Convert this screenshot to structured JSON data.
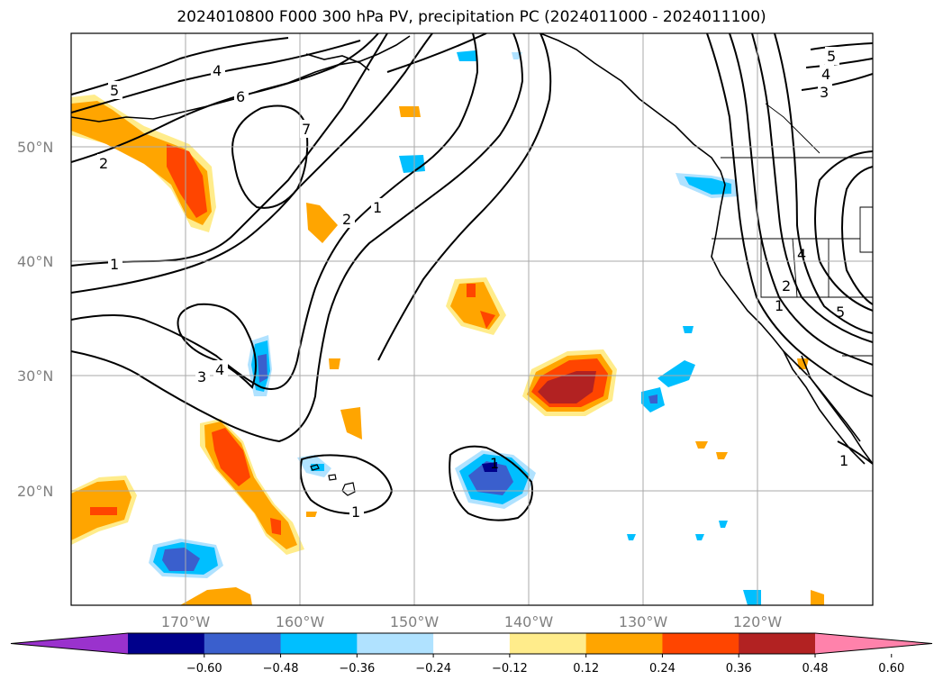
{
  "title": "2024010800 F000 300 hPa PV, precipitation PC (2024011000 - 2024011100)",
  "map": {
    "lat_labels": [
      "50°N",
      "40°N",
      "30°N",
      "20°N"
    ],
    "lon_labels": [
      "170°W",
      "160°W",
      "150°W",
      "140°W",
      "130°W",
      "120°W"
    ],
    "gridline_color": "#aaaaaa",
    "pv_contour_labels": [
      "1",
      "2",
      "3",
      "4",
      "5",
      "6",
      "7"
    ]
  },
  "colorbar": {
    "tick_labels": [
      "−0.60",
      "−0.48",
      "−0.36",
      "−0.24",
      "−0.12",
      "0.12",
      "0.24",
      "0.36",
      "0.48",
      "0.60"
    ],
    "colors": [
      "#9a32cd",
      "#00008b",
      "#3a5fcd",
      "#00bfff",
      "#b0e2ff",
      "#ffffff",
      "#ffec8b",
      "#ffa500",
      "#ff4500",
      "#b22222",
      "#ff82ab"
    ]
  }
}
